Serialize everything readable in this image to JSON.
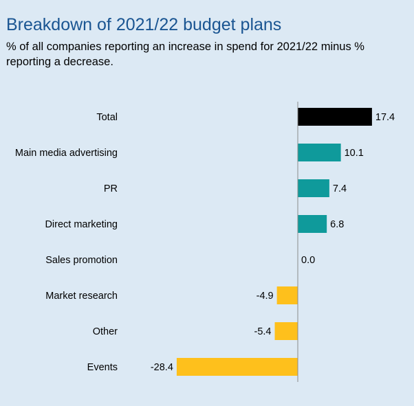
{
  "chart_data": {
    "type": "bar",
    "orientation": "horizontal",
    "title": "Breakdown of 2021/22 budget plans",
    "subtitle": "% of all companies reporting an increase in spend for 2021/22 minus % reporting a decrease.",
    "categories": [
      "Total",
      "Main media advertising",
      "PR",
      "Direct marketing",
      "Sales promotion",
      "Market research",
      "Other",
      "Events"
    ],
    "values": [
      17.4,
      10.1,
      7.4,
      6.8,
      0.0,
      -4.9,
      -5.4,
      -28.4
    ],
    "value_labels": [
      "17.4",
      "10.1",
      "7.4",
      "6.8",
      "0.0",
      "-4.9",
      "-5.4",
      "-28.4"
    ],
    "colors": [
      "#000000",
      "#0f9a9b",
      "#0f9a9b",
      "#0f9a9b",
      "#0f9a9b",
      "#fec01c",
      "#fec01c",
      "#fec01c"
    ],
    "xlim": [
      -28.4,
      17.4
    ],
    "grid": false,
    "legend": "none"
  }
}
